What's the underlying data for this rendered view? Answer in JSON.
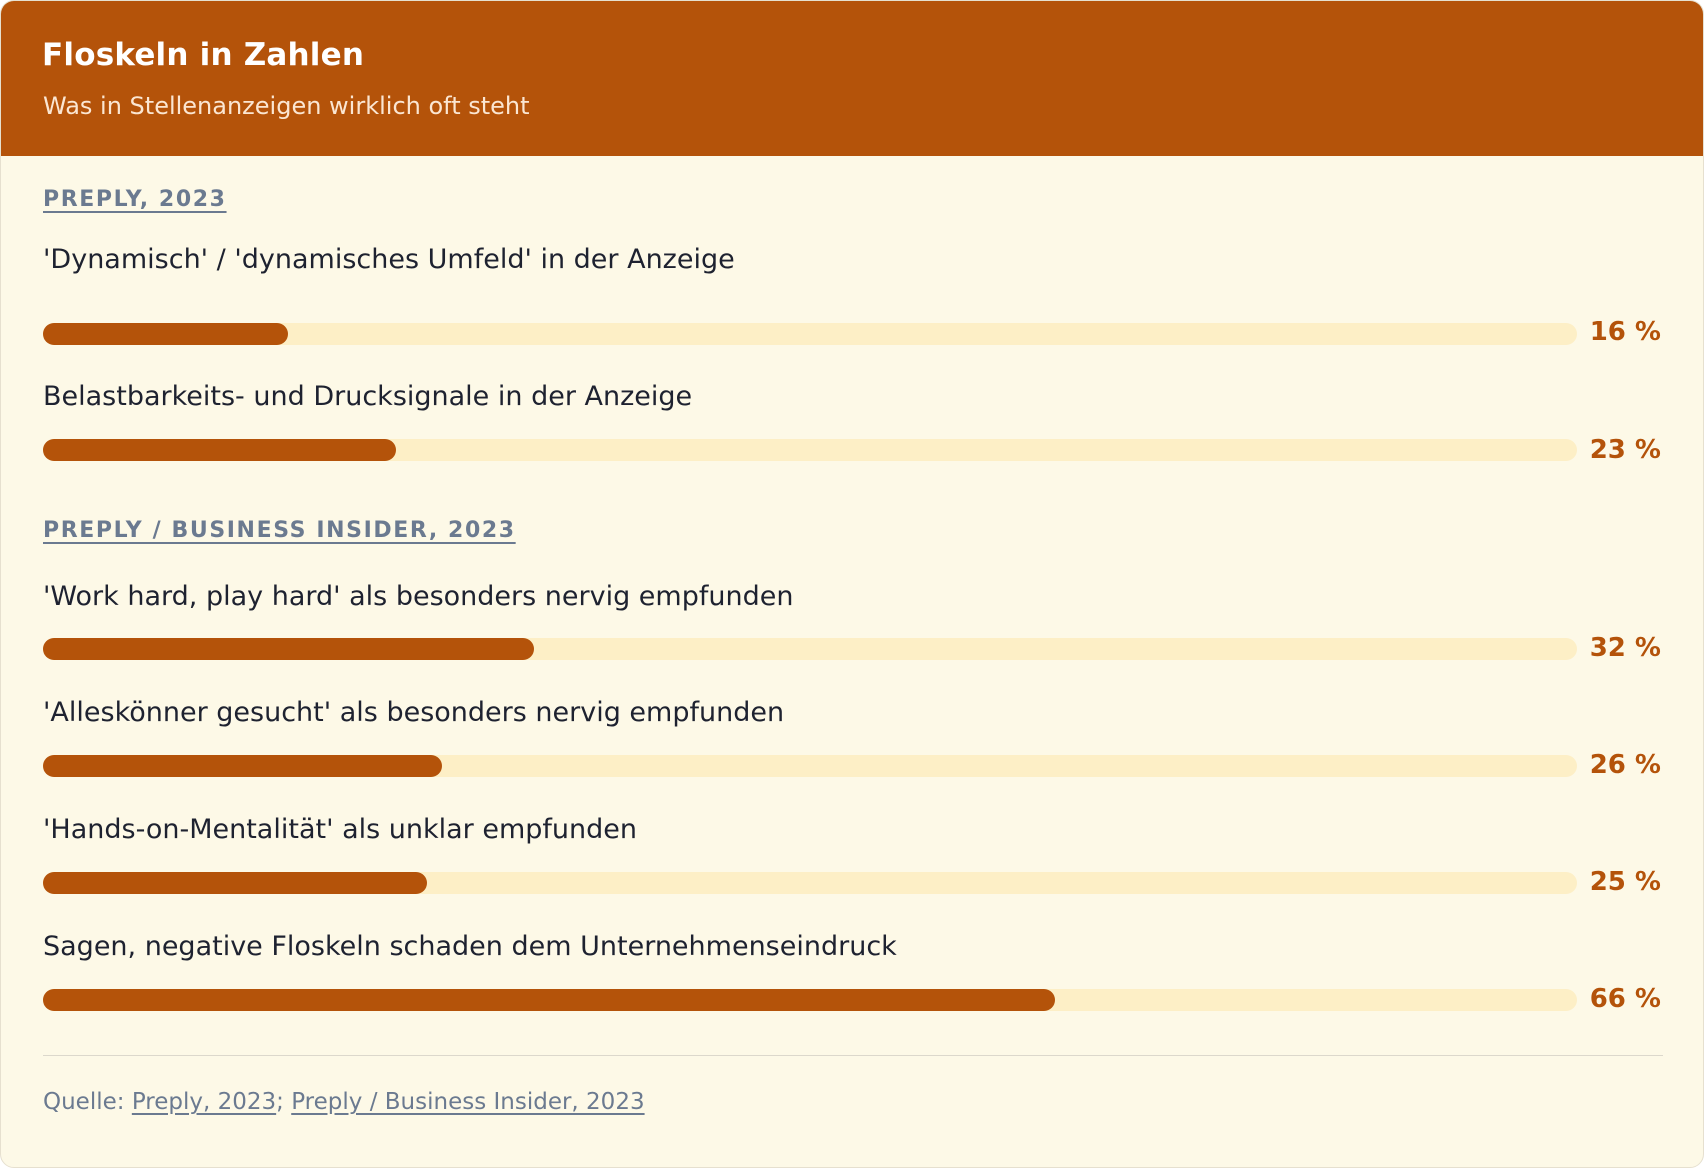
{
  "header": {
    "title": "Floskeln in Zahlen",
    "subtitle": "Was in Stellenanzeigen wirklich oft steht"
  },
  "colors": {
    "accent": "#b4530a",
    "track": "#fdefc6",
    "background": "#fdf9e7",
    "muted": "#6b7a90"
  },
  "chart_data": {
    "type": "bar",
    "orientation": "horizontal",
    "unit": "%",
    "xlim": [
      0,
      100
    ],
    "groups": [
      {
        "source": "PREPLY, 2023",
        "rows": [
          {
            "label": "'Dynamisch' / 'dynamisches Umfeld' in der Anzeige",
            "value": 16,
            "value_label": "16 %"
          },
          {
            "label": "Belastbarkeits- und Drucksignale in der Anzeige",
            "value": 23,
            "value_label": "23 %"
          }
        ]
      },
      {
        "source": "PREPLY / BUSINESS INSIDER, 2023",
        "rows": [
          {
            "label": "'Work hard, play hard' als besonders nervig empfunden",
            "value": 32,
            "value_label": "32 %"
          },
          {
            "label": "'Alleskönner gesucht' als besonders nervig empfunden",
            "value": 26,
            "value_label": "26 %"
          },
          {
            "label": "'Hands-on-Mentalität' als unklar empfunden",
            "value": 25,
            "value_label": "25 %"
          },
          {
            "label": "Sagen, negative Floskeln schaden dem Unternehmenseindruck",
            "value": 66,
            "value_label": "66 %"
          }
        ]
      }
    ]
  },
  "footer": {
    "prefix": "Quelle: ",
    "sources": [
      "Preply, 2023",
      "Preply / Business Insider, 2023"
    ],
    "separator": "; "
  }
}
